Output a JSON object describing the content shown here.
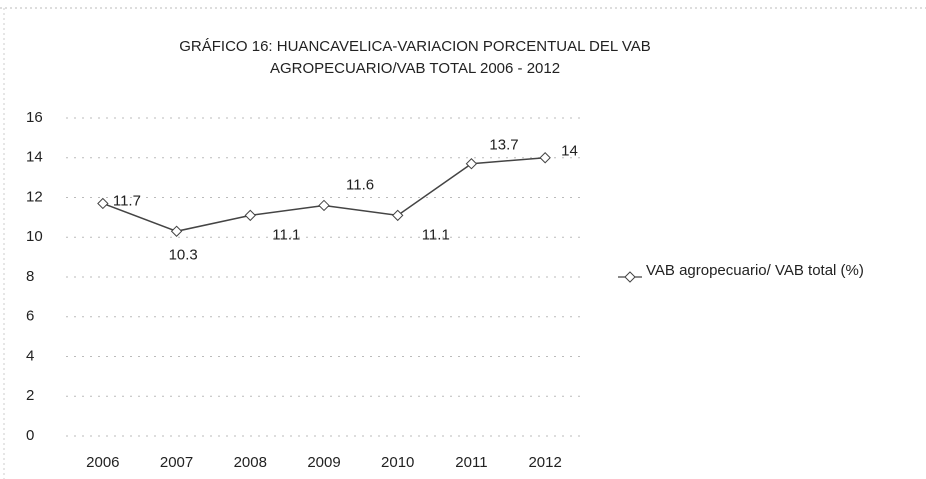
{
  "chart_data": {
    "type": "line",
    "title": "GRÁFICO 16: HUANCAVELICA-VARIACION PORCENTUAL DEL VAB AGROPECUARIO/VAB TOTAL 2006 - 2012",
    "categories": [
      "2006",
      "2007",
      "2008",
      "2009",
      "2010",
      "2011",
      "2012"
    ],
    "series": [
      {
        "name": "VAB agropecuario/ VAB total (%)",
        "color": "#444444",
        "values": [
          11.7,
          10.3,
          11.1,
          11.6,
          11.1,
          13.7,
          14
        ]
      }
    ],
    "ylim": [
      0,
      16
    ],
    "yticks": [
      0,
      2,
      4,
      6,
      8,
      10,
      12,
      14,
      16
    ],
    "grid": true,
    "legend": "right"
  }
}
